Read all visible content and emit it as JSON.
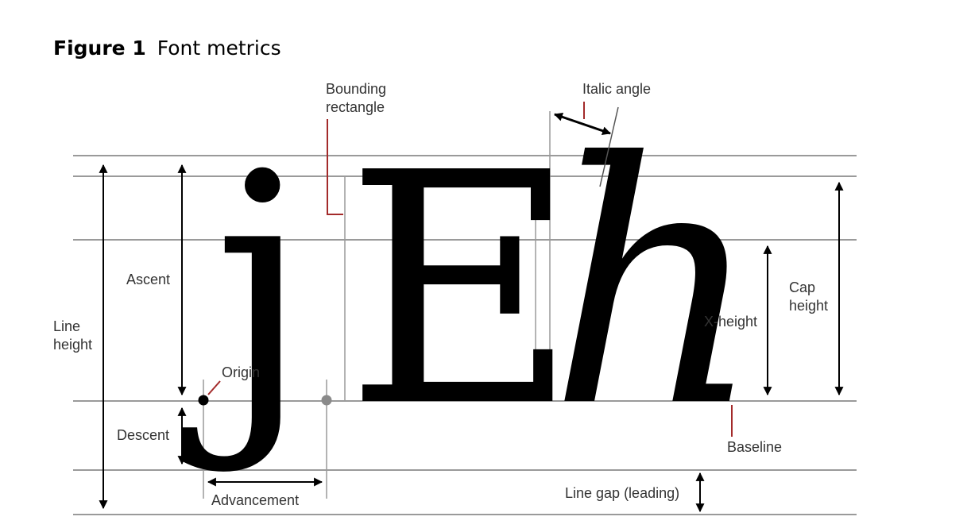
{
  "figure": {
    "number": "Figure 1",
    "title": "Font metrics"
  },
  "glyphs": {
    "j": "j",
    "E": "E",
    "h": "h"
  },
  "labels": {
    "bounding_line1": "Bounding",
    "bounding_line2": "rectangle",
    "italic_angle": "Italic angle",
    "ascent": "Ascent",
    "line_height_line1": "Line",
    "line_height_line2": "height",
    "origin": "Origin",
    "descent": "Descent",
    "advancement": "Advancement",
    "x_height": "X-height",
    "cap_height_line1": "Cap",
    "cap_height_line2": "height",
    "baseline": "Baseline",
    "line_gap": "Line gap (leading)"
  },
  "colors": {
    "guide_line": "#9a9a9a",
    "callout": "#a32a2a",
    "glyph": "#000000"
  }
}
